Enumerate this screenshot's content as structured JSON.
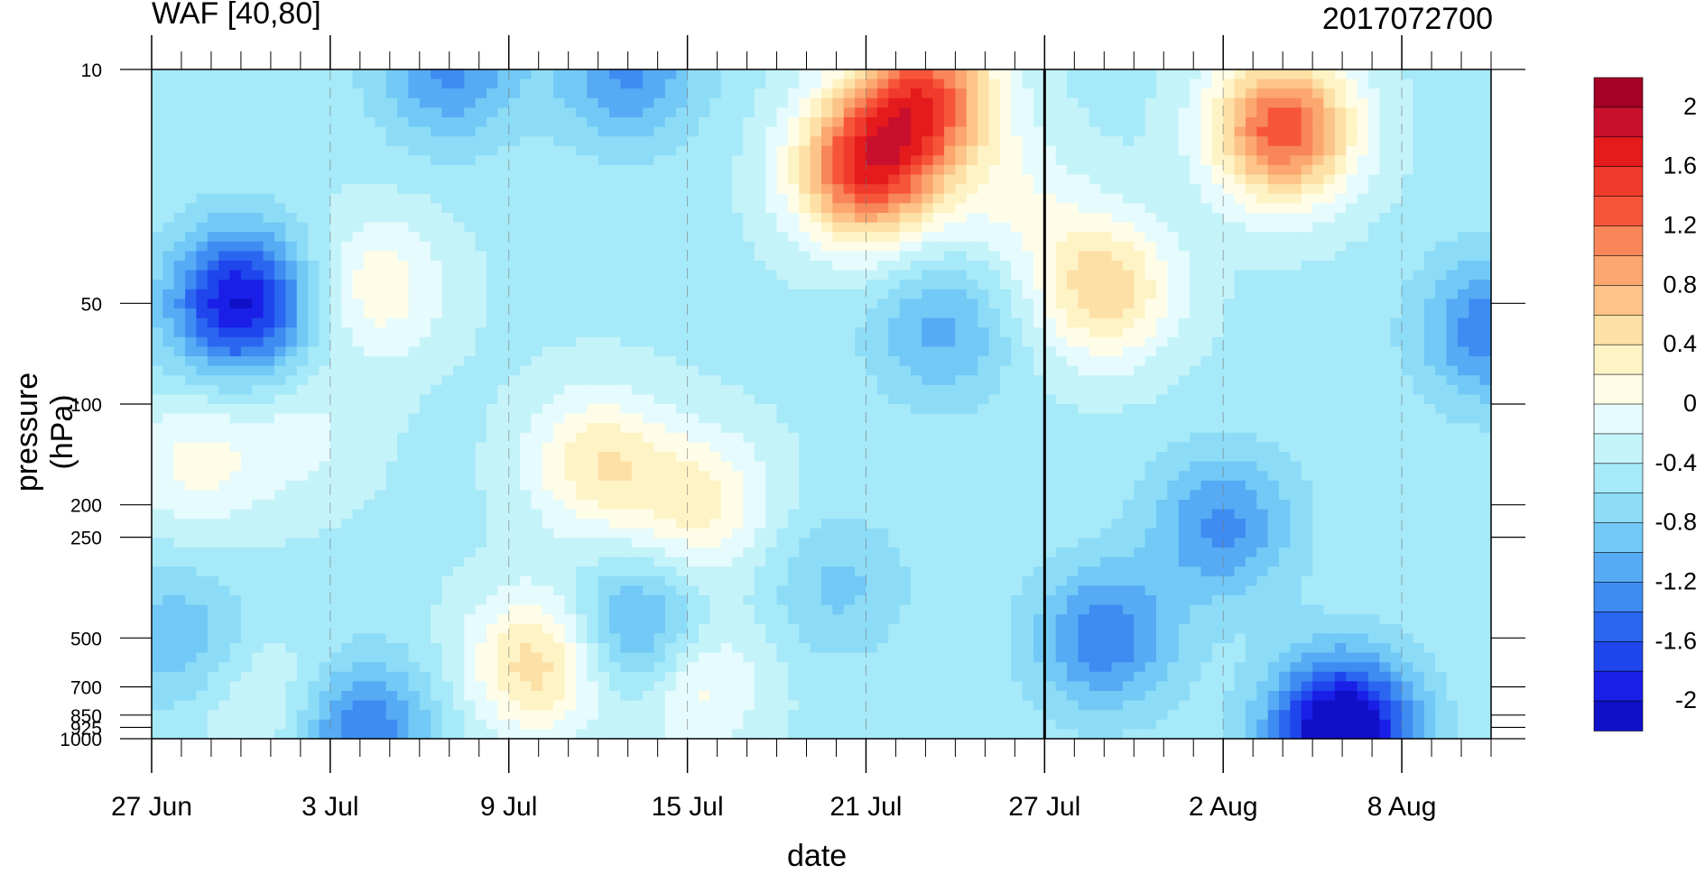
{
  "chart_data": {
    "type": "heatmap",
    "title_left": "WAF [40,80]",
    "title_right": "2017072700",
    "xlabel": "date",
    "ylabel": "pressure (hPa)",
    "x_ticks": [
      "27 Jun",
      "3 Jul",
      "9 Jul",
      "15 Jul",
      "21 Jul",
      "27 Jul",
      "2 Aug",
      "8 Aug"
    ],
    "x_range_days": [
      0,
      45
    ],
    "y_ticks": [
      10,
      50,
      100,
      200,
      250,
      500,
      700,
      850,
      925,
      1000
    ],
    "y_scale": "log",
    "y_range": [
      1000,
      10
    ],
    "vertical_marker": "27 Jul",
    "colorbar": {
      "labels": [
        "2",
        "1.6",
        "1.2",
        "0.8",
        "0.4",
        "0",
        "-0.4",
        "-0.8",
        "-1.2",
        "-1.6",
        "-2"
      ],
      "levels": [
        2.2,
        2.0,
        1.8,
        1.6,
        1.4,
        1.2,
        1.0,
        0.8,
        0.6,
        0.4,
        0.2,
        0.0,
        -0.2,
        -0.4,
        -0.6,
        -0.8,
        -1.0,
        -1.2,
        -1.4,
        -1.6,
        -1.8,
        -2.0
      ],
      "colors": [
        "#a50026",
        "#c8102e",
        "#e41a1c",
        "#f03b2c",
        "#f7553a",
        "#f88659",
        "#fba76f",
        "#fcc489",
        "#fde0a6",
        "#fef3c4",
        "#fffde7",
        "#e6fbfd",
        "#c5f3fa",
        "#a6e9f8",
        "#8ddcf7",
        "#72c9f6",
        "#56abf4",
        "#3e8cf2",
        "#2b66f0",
        "#1f45ec",
        "#1a1fe8",
        "#1010c8"
      ]
    },
    "blobs": [
      {
        "day": 3,
        "p": 50,
        "value": -1.6
      },
      {
        "day": 7.5,
        "p": 45,
        "value": 0.6
      },
      {
        "day": 1.5,
        "p": 150,
        "value": 0.5
      },
      {
        "day": 4,
        "p": 800,
        "value": 0.4
      },
      {
        "day": 5,
        "p": 120,
        "value": 0.3
      },
      {
        "day": 10,
        "p": 10,
        "value": -0.8
      },
      {
        "day": 16,
        "p": 10,
        "value": -0.8
      },
      {
        "day": 13,
        "p": 600,
        "value": 1.0
      },
      {
        "day": 15,
        "p": 150,
        "value": 0.8
      },
      {
        "day": 18.5,
        "p": 200,
        "value": 0.7
      },
      {
        "day": 18,
        "p": 650,
        "value": 0.8
      },
      {
        "day": 16.5,
        "p": 500,
        "value": -1.0
      },
      {
        "day": 24,
        "p": 20,
        "value": 1.9
      },
      {
        "day": 26,
        "p": 12,
        "value": 1.7
      },
      {
        "day": 26.5,
        "p": 60,
        "value": -0.6
      },
      {
        "day": 32,
        "p": 45,
        "value": 1.0
      },
      {
        "day": 38,
        "p": 15,
        "value": 1.8
      },
      {
        "day": 29,
        "p": 25,
        "value": 0.4
      },
      {
        "day": 32,
        "p": 500,
        "value": -0.9
      },
      {
        "day": 40,
        "p": 950,
        "value": -2.0
      },
      {
        "day": 36,
        "p": 230,
        "value": -0.8
      },
      {
        "day": 7,
        "p": 960,
        "value": -1.0
      },
      {
        "day": 23,
        "p": 350,
        "value": -0.4
      },
      {
        "day": 1,
        "p": 500,
        "value": -0.5
      },
      {
        "day": 45,
        "p": 60,
        "value": -0.9
      }
    ]
  }
}
